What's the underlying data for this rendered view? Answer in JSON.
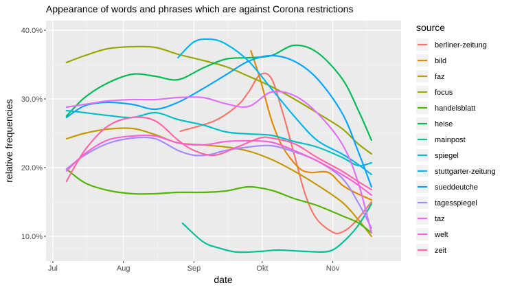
{
  "chart_data": {
    "type": "line",
    "title": "Appearance of words and phrases which are against Corona restrictions",
    "xlabel": "date",
    "ylabel": "relative frequencies",
    "x_ticks": [
      "Jul",
      "Aug",
      "Sep",
      "Okt",
      "Nov"
    ],
    "x_tick_dates": [
      "2020-07-01",
      "2020-08-01",
      "2020-09-01",
      "2020-10-01",
      "2020-11-01"
    ],
    "xlim": [
      "2020-06-28",
      "2020-12-01"
    ],
    "y_ticks": [
      "10.0%",
      "20.0%",
      "30.0%",
      "40.0%"
    ],
    "y_tick_values": [
      10,
      20,
      30,
      40
    ],
    "ylim": [
      6.4,
      41.4
    ],
    "grid": true,
    "legend_title": "source",
    "legend_position": "right",
    "series": [
      {
        "name": "berliner-zeitung",
        "color": "#F8766D",
        "points": [
          [
            "2020-08-26",
            25.3
          ],
          [
            "2020-09-10",
            26.8
          ],
          [
            "2020-09-20",
            29.0
          ],
          [
            "2020-09-25",
            31.0
          ],
          [
            "2020-09-30",
            33.5
          ],
          [
            "2020-10-05",
            33.0
          ],
          [
            "2020-10-10",
            28.0
          ],
          [
            "2020-10-15",
            22.0
          ],
          [
            "2020-10-20",
            16.0
          ],
          [
            "2020-10-25",
            12.5
          ],
          [
            "2020-11-01",
            10.6
          ],
          [
            "2020-11-05",
            10.6
          ],
          [
            "2020-11-10",
            11.8
          ],
          [
            "2020-11-18",
            15.0
          ]
        ]
      },
      {
        "name": "bild",
        "color": "#E38900",
        "points": [
          [
            "2020-09-26",
            37.0
          ],
          [
            "2020-09-30",
            33.0
          ],
          [
            "2020-10-05",
            27.0
          ],
          [
            "2020-10-10",
            23.0
          ],
          [
            "2020-10-17",
            20.0
          ],
          [
            "2020-10-22",
            19.3
          ],
          [
            "2020-10-30",
            19.3
          ],
          [
            "2020-11-05",
            17.5
          ],
          [
            "2020-11-10",
            16.5
          ],
          [
            "2020-11-18",
            15.3
          ]
        ]
      },
      {
        "name": "faz",
        "color": "#C49A00",
        "points": [
          [
            "2020-07-07",
            24.2
          ],
          [
            "2020-07-15",
            25.0
          ],
          [
            "2020-07-25",
            25.6
          ],
          [
            "2020-08-05",
            25.7
          ],
          [
            "2020-08-15",
            24.8
          ],
          [
            "2020-08-25",
            23.6
          ],
          [
            "2020-09-05",
            23.3
          ],
          [
            "2020-09-15",
            23.0
          ],
          [
            "2020-09-25",
            22.4
          ],
          [
            "2020-10-05",
            21.2
          ],
          [
            "2020-10-15",
            19.5
          ],
          [
            "2020-10-25",
            17.5
          ],
          [
            "2020-11-05",
            15.0
          ],
          [
            "2020-11-12",
            12.5
          ],
          [
            "2020-11-18",
            10.0
          ]
        ]
      },
      {
        "name": "focus",
        "color": "#99A800",
        "points": [
          [
            "2020-07-07",
            35.3
          ],
          [
            "2020-07-15",
            36.3
          ],
          [
            "2020-07-25",
            37.3
          ],
          [
            "2020-08-05",
            37.6
          ],
          [
            "2020-08-15",
            37.5
          ],
          [
            "2020-08-25",
            36.5
          ],
          [
            "2020-09-05",
            35.6
          ],
          [
            "2020-09-15",
            34.7
          ],
          [
            "2020-09-25",
            33.3
          ],
          [
            "2020-10-05",
            31.8
          ],
          [
            "2020-10-15",
            30.0
          ],
          [
            "2020-10-25",
            28.0
          ],
          [
            "2020-11-05",
            25.7
          ],
          [
            "2020-11-12",
            23.5
          ],
          [
            "2020-11-18",
            22.0
          ]
        ]
      },
      {
        "name": "handelsblatt",
        "color": "#53B400",
        "points": [
          [
            "2020-07-07",
            19.8
          ],
          [
            "2020-07-15",
            17.8
          ],
          [
            "2020-07-25",
            16.7
          ],
          [
            "2020-08-05",
            16.2
          ],
          [
            "2020-08-15",
            16.2
          ],
          [
            "2020-08-25",
            16.4
          ],
          [
            "2020-09-05",
            16.4
          ],
          [
            "2020-09-15",
            16.6
          ],
          [
            "2020-09-25",
            17.2
          ],
          [
            "2020-10-05",
            16.7
          ],
          [
            "2020-10-15",
            15.5
          ],
          [
            "2020-10-25",
            14.5
          ],
          [
            "2020-11-05",
            13.0
          ],
          [
            "2020-11-12",
            12.0
          ],
          [
            "2020-11-18",
            10.5
          ]
        ]
      },
      {
        "name": "heise",
        "color": "#00BC56",
        "points": [
          [
            "2020-07-07",
            27.5
          ],
          [
            "2020-07-15",
            30.2
          ],
          [
            "2020-07-25",
            32.3
          ],
          [
            "2020-08-05",
            33.6
          ],
          [
            "2020-08-15",
            33.3
          ],
          [
            "2020-08-25",
            32.8
          ],
          [
            "2020-09-05",
            34.5
          ],
          [
            "2020-09-15",
            35.8
          ],
          [
            "2020-09-25",
            36.0
          ],
          [
            "2020-10-05",
            36.3
          ],
          [
            "2020-10-15",
            37.8
          ],
          [
            "2020-10-25",
            36.8
          ],
          [
            "2020-11-05",
            33.0
          ],
          [
            "2020-11-12",
            28.5
          ],
          [
            "2020-11-18",
            24.0
          ]
        ]
      },
      {
        "name": "mainpost",
        "color": "#00C094",
        "points": [
          [
            "2020-08-27",
            11.9
          ],
          [
            "2020-09-05",
            9.2
          ],
          [
            "2020-09-12",
            8.3
          ],
          [
            "2020-09-20",
            7.7
          ],
          [
            "2020-09-30",
            7.8
          ],
          [
            "2020-10-08",
            8.0
          ],
          [
            "2020-10-20",
            7.8
          ],
          [
            "2020-10-30",
            7.8
          ],
          [
            "2020-11-05",
            9.0
          ],
          [
            "2020-11-12",
            11.5
          ],
          [
            "2020-11-18",
            14.7
          ]
        ]
      },
      {
        "name": "spiegel",
        "color": "#00BFC4",
        "points": [
          [
            "2020-07-07",
            28.3
          ],
          [
            "2020-07-15",
            28.0
          ],
          [
            "2020-07-25",
            27.6
          ],
          [
            "2020-08-05",
            27.3
          ],
          [
            "2020-08-15",
            28.0
          ],
          [
            "2020-08-25",
            27.0
          ],
          [
            "2020-09-05",
            26.2
          ],
          [
            "2020-09-15",
            25.2
          ],
          [
            "2020-09-25",
            24.9
          ],
          [
            "2020-10-05",
            24.7
          ],
          [
            "2020-10-15",
            23.8
          ],
          [
            "2020-10-25",
            23.0
          ],
          [
            "2020-11-05",
            21.5
          ],
          [
            "2020-11-12",
            20.3
          ],
          [
            "2020-11-18",
            20.7
          ]
        ]
      },
      {
        "name": "stuttgarter-zeitung",
        "color": "#00B6EB",
        "points": [
          [
            "2020-08-25",
            36.0
          ],
          [
            "2020-09-01",
            38.3
          ],
          [
            "2020-09-08",
            38.7
          ],
          [
            "2020-09-15",
            38.0
          ],
          [
            "2020-09-25",
            35.5
          ],
          [
            "2020-10-05",
            31.5
          ],
          [
            "2020-10-15",
            27.5
          ],
          [
            "2020-10-25",
            24.0
          ],
          [
            "2020-11-05",
            22.0
          ],
          [
            "2020-11-12",
            20.5
          ],
          [
            "2020-11-18",
            19.0
          ]
        ]
      },
      {
        "name": "sueddeutche",
        "color": "#06A4FF",
        "points": [
          [
            "2020-07-07",
            27.3
          ],
          [
            "2020-07-15",
            29.0
          ],
          [
            "2020-07-25",
            29.5
          ],
          [
            "2020-08-05",
            29.2
          ],
          [
            "2020-08-15",
            28.5
          ],
          [
            "2020-08-25",
            29.5
          ],
          [
            "2020-09-05",
            31.5
          ],
          [
            "2020-09-15",
            33.5
          ],
          [
            "2020-09-25",
            35.5
          ],
          [
            "2020-10-05",
            36.3
          ],
          [
            "2020-10-15",
            35.5
          ],
          [
            "2020-10-25",
            33.0
          ],
          [
            "2020-11-05",
            28.0
          ],
          [
            "2020-11-12",
            22.5
          ],
          [
            "2020-11-18",
            17.2
          ]
        ]
      },
      {
        "name": "tagesspiegel",
        "color": "#A58AFF",
        "points": [
          [
            "2020-07-07",
            19.8
          ],
          [
            "2020-07-15",
            21.8
          ],
          [
            "2020-07-25",
            23.5
          ],
          [
            "2020-08-05",
            24.3
          ],
          [
            "2020-08-15",
            24.2
          ],
          [
            "2020-08-25",
            22.5
          ],
          [
            "2020-09-01",
            21.8
          ],
          [
            "2020-09-08",
            21.9
          ],
          [
            "2020-09-15",
            22.5
          ],
          [
            "2020-09-25",
            23.0
          ],
          [
            "2020-10-05",
            23.2
          ],
          [
            "2020-10-15",
            22.3
          ],
          [
            "2020-10-25",
            21.0
          ],
          [
            "2020-11-05",
            18.5
          ],
          [
            "2020-11-12",
            15.0
          ],
          [
            "2020-11-18",
            11.2
          ]
        ]
      },
      {
        "name": "taz",
        "color": "#DF70F8",
        "points": [
          [
            "2020-07-07",
            28.8
          ],
          [
            "2020-07-15",
            29.2
          ],
          [
            "2020-07-25",
            29.7
          ],
          [
            "2020-08-05",
            29.9
          ],
          [
            "2020-08-15",
            29.9
          ],
          [
            "2020-08-25",
            30.2
          ],
          [
            "2020-09-05",
            30.2
          ],
          [
            "2020-09-15",
            29.3
          ],
          [
            "2020-09-25",
            28.9
          ],
          [
            "2020-10-05",
            31.0
          ],
          [
            "2020-10-15",
            30.5
          ],
          [
            "2020-10-25",
            28.0
          ],
          [
            "2020-11-05",
            23.5
          ],
          [
            "2020-11-12",
            18.0
          ],
          [
            "2020-11-18",
            10.5
          ]
        ]
      },
      {
        "name": "welt",
        "color": "#FB61D7",
        "points": [
          [
            "2020-07-07",
            19.5
          ],
          [
            "2020-07-15",
            22.0
          ],
          [
            "2020-07-25",
            24.0
          ],
          [
            "2020-08-05",
            24.6
          ],
          [
            "2020-08-15",
            24.6
          ],
          [
            "2020-08-25",
            23.6
          ],
          [
            "2020-09-05",
            23.3
          ],
          [
            "2020-09-15",
            23.8
          ],
          [
            "2020-09-25",
            23.9
          ],
          [
            "2020-10-05",
            23.7
          ],
          [
            "2020-10-15",
            22.5
          ],
          [
            "2020-10-25",
            21.0
          ],
          [
            "2020-11-05",
            19.0
          ],
          [
            "2020-11-12",
            17.5
          ],
          [
            "2020-11-18",
            16.0
          ]
        ]
      },
      {
        "name": "zeit",
        "color": "#FF66A8",
        "points": [
          [
            "2020-07-07",
            18.0
          ],
          [
            "2020-07-15",
            22.5
          ],
          [
            "2020-07-25",
            26.0
          ],
          [
            "2020-08-05",
            27.3
          ],
          [
            "2020-08-15",
            26.8
          ],
          [
            "2020-08-25",
            24.0
          ],
          [
            "2020-09-01",
            22.5
          ],
          [
            "2020-09-10",
            21.8
          ],
          [
            "2020-09-20",
            23.0
          ],
          [
            "2020-09-30",
            24.3
          ],
          [
            "2020-10-05",
            24.3
          ],
          [
            "2020-10-15",
            23.5
          ],
          [
            "2020-10-25",
            21.5
          ],
          [
            "2020-11-05",
            19.5
          ],
          [
            "2020-11-12",
            18.0
          ],
          [
            "2020-11-18",
            16.8
          ]
        ]
      }
    ]
  }
}
